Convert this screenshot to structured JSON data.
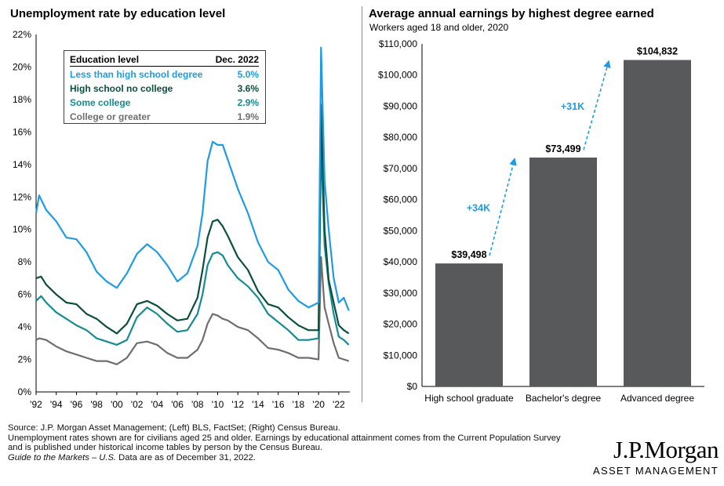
{
  "left": {
    "title": "Unemployment rate by education level",
    "legend": {
      "header_label": "Education level",
      "header_value": "Dec. 2022",
      "rows": [
        {
          "label": "Less than high school degree",
          "value": "5.0%",
          "color": "#1f9be6"
        },
        {
          "label": "High school no college",
          "value": "3.6%",
          "color": "#0b4f3c"
        },
        {
          "label": "Some college",
          "value": "2.9%",
          "color": "#158b92"
        },
        {
          "label": "College or greater",
          "value": "1.9%",
          "color": "#6e6e6e"
        }
      ]
    }
  },
  "right": {
    "title": "Average annual earnings by highest degree earned",
    "subtitle": "Workers aged 18 and older, 2020",
    "arrows": [
      "+34K",
      "+31K"
    ]
  },
  "footer": {
    "line1": "Source: J.P. Morgan Asset Management; (Left) BLS, FactSet; (Right) Census Bureau.",
    "line2": "Unemployment rates shown are for civilians aged 25 and older. Earnings by educational attainment comes from the Current Population Survey",
    "line3": "and is published under historical income tables by person by the Census Bureau.",
    "line4_italic": "Guide to the Markets – U.S.",
    "line4_rest": " Data are as of December 31, 2022."
  },
  "logo": {
    "name": "J.P.Morgan",
    "sub": "ASSET MANAGEMENT"
  },
  "chart_data": [
    {
      "type": "line",
      "title": "Unemployment rate by education level",
      "x_ticks": [
        "'92",
        "'94",
        "'96",
        "'98",
        "'00",
        "'02",
        "'04",
        "'06",
        "'08",
        "'10",
        "'12",
        "'14",
        "'16",
        "'18",
        "'20",
        "'22"
      ],
      "y_ticks": [
        "0%",
        "2%",
        "4%",
        "6%",
        "8%",
        "10%",
        "12%",
        "14%",
        "16%",
        "18%",
        "20%",
        "22%"
      ],
      "ylim": [
        0,
        22
      ],
      "xlim": [
        1992,
        2023.1
      ],
      "grid": false,
      "series": [
        {
          "name": "Less than high school degree",
          "color": "#1f9be6",
          "points": [
            [
              1992,
              11
            ],
            [
              1992.3,
              12.1
            ],
            [
              1993,
              11.2
            ],
            [
              1994,
              10.5
            ],
            [
              1995,
              9.5
            ],
            [
              1996,
              9.4
            ],
            [
              1997,
              8.6
            ],
            [
              1998,
              7.4
            ],
            [
              1999,
              6.8
            ],
            [
              2000,
              6.4
            ],
            [
              2001,
              7.3
            ],
            [
              2002,
              8.5
            ],
            [
              2003,
              9.1
            ],
            [
              2004,
              8.6
            ],
            [
              2005,
              7.8
            ],
            [
              2006,
              6.8
            ],
            [
              2007,
              7.3
            ],
            [
              2008,
              9
            ],
            [
              2008.5,
              11
            ],
            [
              2009,
              14.2
            ],
            [
              2009.5,
              15.4
            ],
            [
              2010,
              15.2
            ],
            [
              2010.5,
              15.2
            ],
            [
              2011,
              14.3
            ],
            [
              2012,
              12.5
            ],
            [
              2013,
              11
            ],
            [
              2014,
              9.2
            ],
            [
              2015,
              8
            ],
            [
              2016,
              7.5
            ],
            [
              2017,
              6.3
            ],
            [
              2018,
              5.6
            ],
            [
              2019,
              5.2
            ],
            [
              2020,
              5.5
            ],
            [
              2020.25,
              21.2
            ],
            [
              2020.6,
              13
            ],
            [
              2021,
              10
            ],
            [
              2021.5,
              7
            ],
            [
              2022,
              5.5
            ],
            [
              2022.5,
              5.8
            ],
            [
              2023,
              5
            ]
          ]
        },
        {
          "name": "High school no college",
          "color": "#0b4f3c",
          "points": [
            [
              1992,
              7
            ],
            [
              1992.5,
              7.1
            ],
            [
              1993,
              6.6
            ],
            [
              1994,
              6
            ],
            [
              1995,
              5.5
            ],
            [
              1996,
              5.4
            ],
            [
              1997,
              4.8
            ],
            [
              1998,
              4.5
            ],
            [
              1999,
              4
            ],
            [
              2000,
              3.6
            ],
            [
              2001,
              4.2
            ],
            [
              2002,
              5.4
            ],
            [
              2003,
              5.6
            ],
            [
              2004,
              5.3
            ],
            [
              2005,
              4.8
            ],
            [
              2006,
              4.4
            ],
            [
              2007,
              4.5
            ],
            [
              2008,
              5.8
            ],
            [
              2008.5,
              7.5
            ],
            [
              2009,
              9.5
            ],
            [
              2009.5,
              10.5
            ],
            [
              2010,
              10.6
            ],
            [
              2010.5,
              10.2
            ],
            [
              2011,
              9.6
            ],
            [
              2012,
              8.3
            ],
            [
              2013,
              7.5
            ],
            [
              2014,
              6.2
            ],
            [
              2015,
              5.4
            ],
            [
              2016,
              5.2
            ],
            [
              2017,
              4.6
            ],
            [
              2018,
              4.1
            ],
            [
              2019,
              3.8
            ],
            [
              2020,
              3.8
            ],
            [
              2020.25,
              17.7
            ],
            [
              2020.6,
              10
            ],
            [
              2021,
              6.9
            ],
            [
              2021.5,
              5.5
            ],
            [
              2022,
              4.1
            ],
            [
              2022.5,
              3.8
            ],
            [
              2023,
              3.6
            ]
          ]
        },
        {
          "name": "Some college",
          "color": "#158b92",
          "points": [
            [
              1992,
              5.6
            ],
            [
              1992.5,
              5.9
            ],
            [
              1993,
              5.5
            ],
            [
              1994,
              4.9
            ],
            [
              1995,
              4.5
            ],
            [
              1996,
              4.1
            ],
            [
              1997,
              3.8
            ],
            [
              1998,
              3.3
            ],
            [
              1999,
              3.1
            ],
            [
              2000,
              2.9
            ],
            [
              2001,
              3.2
            ],
            [
              2002,
              4.6
            ],
            [
              2003,
              5.2
            ],
            [
              2004,
              4.8
            ],
            [
              2005,
              4.2
            ],
            [
              2006,
              3.7
            ],
            [
              2007,
              3.8
            ],
            [
              2008,
              4.8
            ],
            [
              2008.5,
              6
            ],
            [
              2009,
              7.8
            ],
            [
              2009.5,
              8.5
            ],
            [
              2010,
              8.6
            ],
            [
              2010.5,
              8.4
            ],
            [
              2011,
              7.8
            ],
            [
              2012,
              7
            ],
            [
              2013,
              6.5
            ],
            [
              2014,
              5.8
            ],
            [
              2015,
              4.8
            ],
            [
              2016,
              4.3
            ],
            [
              2017,
              3.8
            ],
            [
              2018,
              3.2
            ],
            [
              2019,
              3.2
            ],
            [
              2020,
              3.3
            ],
            [
              2020.25,
              15.3
            ],
            [
              2020.6,
              9
            ],
            [
              2021,
              6.7
            ],
            [
              2021.5,
              4.8
            ],
            [
              2022,
              3.4
            ],
            [
              2022.5,
              3.2
            ],
            [
              2023,
              2.9
            ]
          ]
        },
        {
          "name": "College or greater",
          "color": "#6e6e6e",
          "points": [
            [
              1992,
              3.2
            ],
            [
              1992.3,
              3.3
            ],
            [
              1993,
              3.2
            ],
            [
              1994,
              2.8
            ],
            [
              1995,
              2.5
            ],
            [
              1996,
              2.3
            ],
            [
              1997,
              2.1
            ],
            [
              1998,
              1.9
            ],
            [
              1999,
              1.9
            ],
            [
              2000,
              1.7
            ],
            [
              2001,
              2.1
            ],
            [
              2002,
              3
            ],
            [
              2003,
              3.1
            ],
            [
              2004,
              2.9
            ],
            [
              2005,
              2.4
            ],
            [
              2006,
              2.1
            ],
            [
              2007,
              2.1
            ],
            [
              2008,
              2.6
            ],
            [
              2008.5,
              3.2
            ],
            [
              2009,
              4.2
            ],
            [
              2009.5,
              4.8
            ],
            [
              2010,
              4.7
            ],
            [
              2010.5,
              4.5
            ],
            [
              2011,
              4.4
            ],
            [
              2012,
              4
            ],
            [
              2013,
              3.8
            ],
            [
              2014,
              3.3
            ],
            [
              2015,
              2.7
            ],
            [
              2016,
              2.6
            ],
            [
              2017,
              2.4
            ],
            [
              2018,
              2.1
            ],
            [
              2019,
              2.1
            ],
            [
              2020,
              2
            ],
            [
              2020.25,
              8.3
            ],
            [
              2020.6,
              5.2
            ],
            [
              2021,
              4.2
            ],
            [
              2021.5,
              3
            ],
            [
              2022,
              2.1
            ],
            [
              2022.5,
              2
            ],
            [
              2023,
              1.9
            ]
          ]
        }
      ]
    },
    {
      "type": "bar",
      "title": "Average annual earnings by highest degree earned",
      "subtitle": "Workers aged 18 and older, 2020",
      "categories": [
        "High school graduate",
        "Bachelor's degree",
        "Advanced degree"
      ],
      "values": [
        39498,
        73499,
        104832
      ],
      "value_labels": [
        "$39,498",
        "$73,499",
        "$104,832"
      ],
      "y_ticks": [
        "$0",
        "$10,000",
        "$20,000",
        "$30,000",
        "$40,000",
        "$50,000",
        "$60,000",
        "$70,000",
        "$80,000",
        "$90,000",
        "$100,000",
        "$110,000"
      ],
      "ylim": [
        0,
        110000
      ],
      "bar_color": "#58595b",
      "arrow_color": "#1f9be6"
    }
  ]
}
